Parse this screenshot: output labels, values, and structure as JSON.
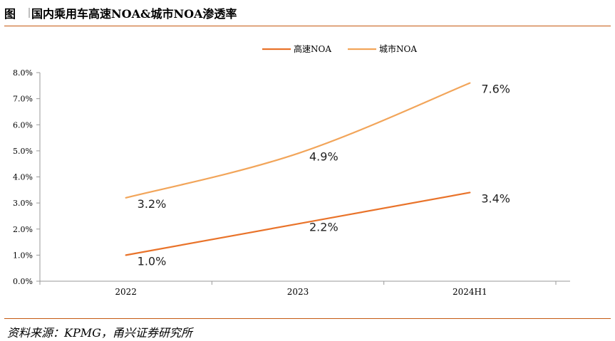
{
  "header": {
    "prefix": "图",
    "title": "国内乘用车高速NOA&城市NOA渗透率"
  },
  "source": "资料来源：KPMG，甬兴证券研究所",
  "colors": {
    "series_highway": "#e9732a",
    "series_city": "#f2a55a",
    "rule": "#c55a11",
    "axis": "#999999"
  },
  "chart_data": {
    "type": "line",
    "title": "",
    "xlabel": "",
    "ylabel": "",
    "categories": [
      "2022",
      "2023",
      "2024H1"
    ],
    "y_ticks": [
      "0.0%",
      "1.0%",
      "2.0%",
      "3.0%",
      "4.0%",
      "5.0%",
      "6.0%",
      "7.0%",
      "8.0%"
    ],
    "ylim": [
      0,
      8
    ],
    "grid": false,
    "legend_position": "top-right",
    "series": [
      {
        "name": "高速NOA",
        "color": "#e9732a",
        "values": [
          1.0,
          2.2,
          3.4
        ],
        "labels": [
          "1.0%",
          "2.2%",
          "3.4%"
        ]
      },
      {
        "name": "城市NOA",
        "color": "#f2a55a",
        "values": [
          3.2,
          4.9,
          7.6
        ],
        "labels": [
          "3.2%",
          "4.9%",
          "7.6%"
        ]
      }
    ]
  }
}
